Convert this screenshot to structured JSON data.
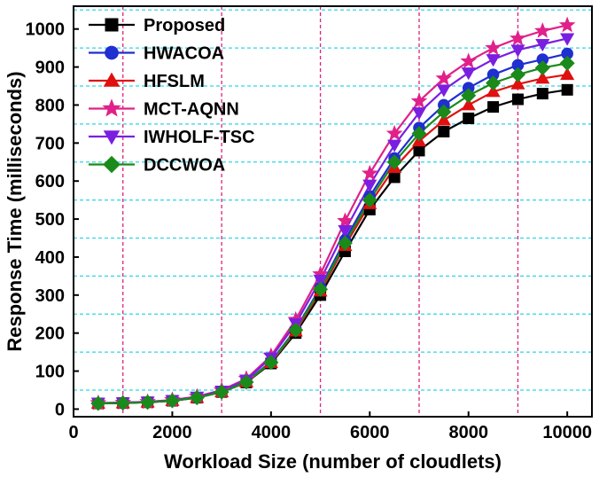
{
  "chart_data": {
    "type": "line",
    "title": "",
    "xlabel": "Workload Size (number of cloudlets)",
    "ylabel": "Response Time (milliseconds)",
    "xlim": [
      0,
      10500
    ],
    "ylim": [
      -20,
      1060
    ],
    "xticks": [
      0,
      2000,
      4000,
      6000,
      8000,
      10000
    ],
    "yticks": [
      0,
      100,
      200,
      300,
      400,
      500,
      600,
      700,
      800,
      900,
      1000
    ],
    "vgrid": [
      1000,
      3000,
      5000,
      7000,
      9000
    ],
    "hgrid": [
      50,
      150,
      250,
      350,
      450,
      550,
      650,
      750,
      850,
      950,
      1050
    ],
    "vgrid_color": "#e0217a",
    "hgrid_color": "#2fd6e6",
    "legend_position": "top-left",
    "x": [
      500,
      1000,
      1500,
      2000,
      2500,
      3000,
      3500,
      4000,
      4500,
      5000,
      5500,
      6000,
      6500,
      7000,
      7500,
      8000,
      8500,
      9000,
      9500,
      10000
    ],
    "series": [
      {
        "name": "Proposed",
        "color": "#000000",
        "marker": "square",
        "values": [
          15,
          16,
          18,
          22,
          30,
          45,
          70,
          120,
          200,
          300,
          415,
          525,
          610,
          680,
          730,
          765,
          795,
          815,
          830,
          840
        ]
      },
      {
        "name": "HWACOA",
        "color": "#1f2fd0",
        "marker": "circle",
        "values": [
          15,
          16,
          18,
          22,
          30,
          45,
          72,
          125,
          210,
          320,
          445,
          560,
          660,
          740,
          800,
          845,
          880,
          905,
          920,
          935
        ]
      },
      {
        "name": "HFSLM",
        "color": "#e01010",
        "marker": "triangle-up",
        "values": [
          15,
          16,
          18,
          22,
          30,
          45,
          71,
          122,
          205,
          310,
          430,
          540,
          635,
          705,
          760,
          800,
          835,
          855,
          870,
          880
        ]
      },
      {
        "name": "MCT-AQNN",
        "color": "#e0218a",
        "marker": "star",
        "values": [
          16,
          17,
          19,
          24,
          33,
          50,
          80,
          140,
          235,
          355,
          495,
          620,
          725,
          810,
          870,
          915,
          950,
          975,
          995,
          1010
        ]
      },
      {
        "name": "IWHOLF-TSC",
        "color": "#7a1fe0",
        "marker": "triangle-down",
        "values": [
          16,
          17,
          19,
          23,
          32,
          48,
          77,
          135,
          225,
          340,
          470,
          590,
          695,
          780,
          840,
          885,
          920,
          945,
          960,
          975
        ]
      },
      {
        "name": "DCCWOA",
        "color": "#1a8a1a",
        "marker": "diamond",
        "values": [
          15,
          16,
          18,
          22,
          30,
          45,
          71,
          123,
          208,
          315,
          437,
          550,
          650,
          725,
          782,
          825,
          858,
          880,
          898,
          910
        ]
      }
    ]
  }
}
